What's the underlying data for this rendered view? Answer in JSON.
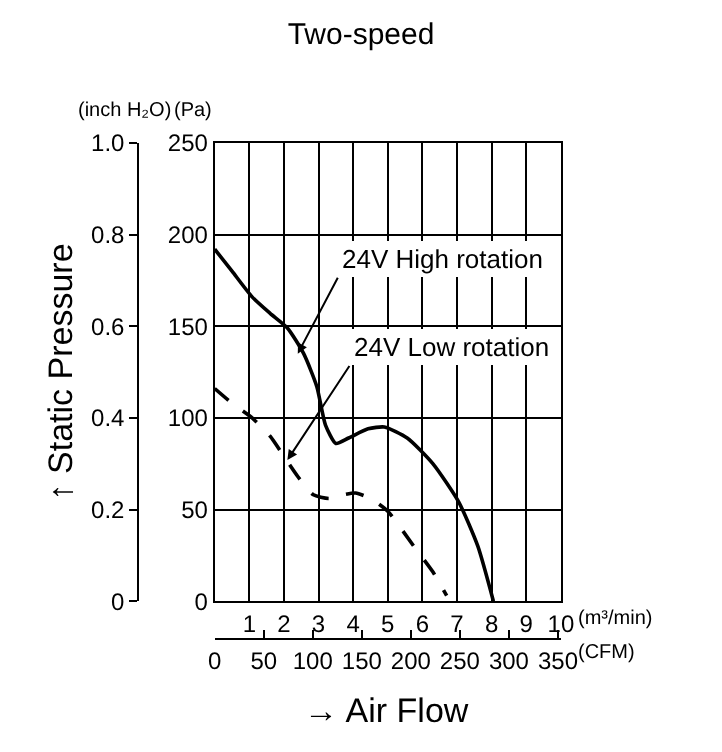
{
  "chart_data": {
    "type": "line",
    "title": "Two-speed",
    "xlabel": "(m³/min)",
    "x2label": "(CFM)",
    "ylabel": "(Pa)",
    "y2label": "(inch H₂O)",
    "xlim": [
      0,
      10
    ],
    "xticks": [
      1,
      2,
      3,
      4,
      5,
      6,
      7,
      8,
      9,
      10
    ],
    "x2lim": [
      0,
      353
    ],
    "x2ticks": [
      0,
      50,
      100,
      150,
      200,
      250,
      300,
      350
    ],
    "ylim": [
      0,
      250
    ],
    "yticks": [
      0,
      50,
      100,
      150,
      200,
      250
    ],
    "y2lim": [
      0,
      1.0
    ],
    "y2ticks": [
      0,
      0.2,
      0.4,
      0.6,
      0.8,
      {
        "value": 1.0,
        "label": "1.0"
      }
    ],
    "grid": true,
    "marker": "none",
    "series": [
      {
        "color": "#000000",
        "line_style": "solid",
        "x": [
          0,
          0.5,
          1.08,
          1.6,
          2.1,
          2.57,
          2.95,
          3.2,
          3.5,
          3.87,
          4.43,
          4.9,
          5.56,
          6.3,
          7.05,
          7.6,
          8.05
        ],
        "values": [
          192,
          180,
          166,
          157,
          149,
          135,
          117,
          96,
          86,
          89,
          94,
          95,
          89,
          75,
          54,
          30,
          0
        ]
      },
      {
        "color": "#000000",
        "line_style": "dashed",
        "x": [
          0,
          0.5,
          1.08,
          1.6,
          2.0,
          2.4,
          2.85,
          3.3,
          3.7,
          4.07,
          4.5,
          5.0,
          5.75,
          6.3,
          6.7
        ],
        "values": [
          116,
          108,
          100,
          90,
          79,
          68,
          58,
          56,
          58,
          59,
          56,
          49,
          30,
          16,
          3
        ]
      }
    ],
    "annotations": [
      {
        "text": "24V High rotation",
        "x": 2.4,
        "y": 135
      },
      {
        "text": "24V Low rotation",
        "x": 2.1,
        "y": 77
      },
      "↑ Static Pressure",
      "→ Air Flow"
    ]
  }
}
